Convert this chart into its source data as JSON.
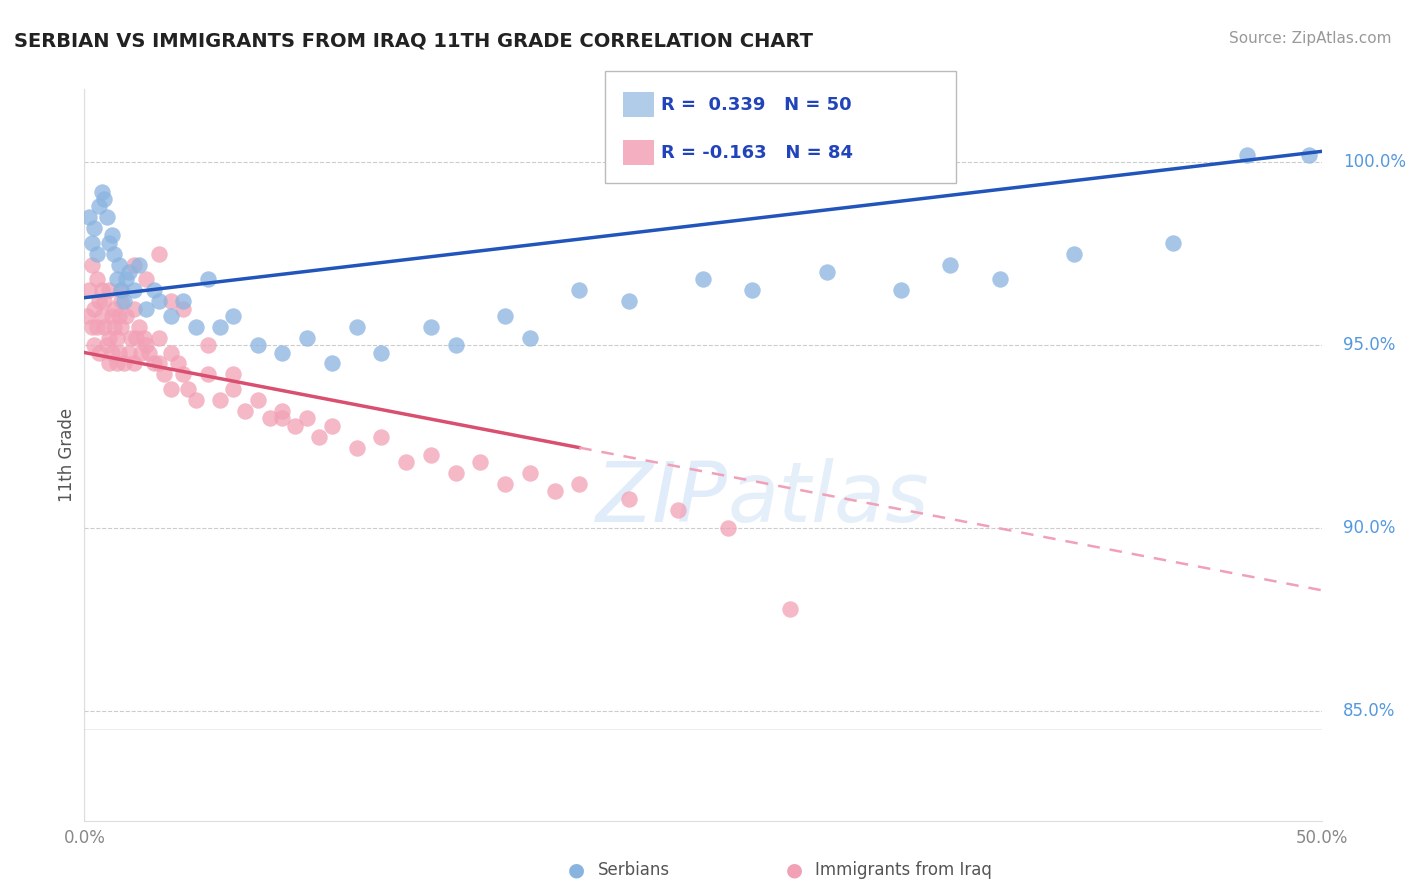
{
  "title": "SERBIAN VS IMMIGRANTS FROM IRAQ 11TH GRADE CORRELATION CHART",
  "source": "Source: ZipAtlas.com",
  "ylabel": "11th Grade",
  "xlim": [
    0.0,
    50.0
  ],
  "ylim": [
    82.0,
    102.0
  ],
  "yticks_right": [
    85.0,
    90.0,
    95.0,
    100.0
  ],
  "ytick_labels_right": [
    "85.0%",
    "90.0%",
    "95.0%",
    "100.0%"
  ],
  "r_serbian": 0.339,
  "n_serbian": 50,
  "r_iraq": -0.163,
  "n_iraq": 84,
  "serbian_color": "#8ab4e0",
  "iraq_color": "#f2a0b5",
  "trendline_serbian_color": "#2255bb",
  "trendline_iraq_solid_color": "#d94f70",
  "trendline_iraq_dashed_color": "#f0a0b8",
  "watermark": "ZIPatlas",
  "legend_box_color_serbian": "#b0cce8",
  "legend_box_color_iraq": "#f4b0c0",
  "serbian_trend_x0": 0.0,
  "serbian_trend_y0": 96.3,
  "serbian_trend_x1": 50.0,
  "serbian_trend_y1": 100.3,
  "iraq_trend_x0": 0.0,
  "iraq_trend_y0": 94.8,
  "iraq_trend_x1": 50.0,
  "iraq_trend_y1": 88.3,
  "iraq_solid_end_x": 20.0,
  "serbian_points_x": [
    0.2,
    0.3,
    0.4,
    0.5,
    0.6,
    0.7,
    0.8,
    0.9,
    1.0,
    1.1,
    1.2,
    1.3,
    1.4,
    1.5,
    1.6,
    1.7,
    1.8,
    2.0,
    2.2,
    2.5,
    2.8,
    3.0,
    3.5,
    4.0,
    4.5,
    5.0,
    5.5,
    6.0,
    7.0,
    8.0,
    9.0,
    10.0,
    11.0,
    12.0,
    14.0,
    15.0,
    17.0,
    18.0,
    20.0,
    22.0,
    25.0,
    27.0,
    30.0,
    33.0,
    35.0,
    37.0,
    40.0,
    44.0,
    47.0,
    49.5
  ],
  "serbian_points_y": [
    98.5,
    97.8,
    98.2,
    97.5,
    98.8,
    99.2,
    99.0,
    98.5,
    97.8,
    98.0,
    97.5,
    96.8,
    97.2,
    96.5,
    96.2,
    96.8,
    97.0,
    96.5,
    97.2,
    96.0,
    96.5,
    96.2,
    95.8,
    96.2,
    95.5,
    96.8,
    95.5,
    95.8,
    95.0,
    94.8,
    95.2,
    94.5,
    95.5,
    94.8,
    95.5,
    95.0,
    95.8,
    95.2,
    96.5,
    96.2,
    96.8,
    96.5,
    97.0,
    96.5,
    97.2,
    96.8,
    97.5,
    97.8,
    100.2,
    100.2
  ],
  "iraq_points_x": [
    0.1,
    0.2,
    0.3,
    0.3,
    0.4,
    0.4,
    0.5,
    0.5,
    0.6,
    0.6,
    0.7,
    0.7,
    0.8,
    0.8,
    0.9,
    1.0,
    1.0,
    1.0,
    1.1,
    1.1,
    1.2,
    1.2,
    1.3,
    1.3,
    1.4,
    1.4,
    1.5,
    1.5,
    1.6,
    1.7,
    1.8,
    1.9,
    2.0,
    2.0,
    2.1,
    2.2,
    2.3,
    2.4,
    2.5,
    2.6,
    2.8,
    3.0,
    3.0,
    3.2,
    3.5,
    3.5,
    3.8,
    4.0,
    4.2,
    4.5,
    5.0,
    5.5,
    6.0,
    6.5,
    7.0,
    7.5,
    8.0,
    8.5,
    9.0,
    9.5,
    10.0,
    11.0,
    12.0,
    13.0,
    14.0,
    15.0,
    16.0,
    17.0,
    18.0,
    19.0,
    20.0,
    22.0,
    24.0,
    26.0,
    1.5,
    2.0,
    2.5,
    3.0,
    3.5,
    4.0,
    5.0,
    6.0,
    8.0,
    28.5
  ],
  "iraq_points_y": [
    95.8,
    96.5,
    95.5,
    97.2,
    96.0,
    95.0,
    96.8,
    95.5,
    96.2,
    94.8,
    95.8,
    96.5,
    95.5,
    96.2,
    95.0,
    96.5,
    95.2,
    94.5,
    95.8,
    94.8,
    95.5,
    96.0,
    95.2,
    94.5,
    95.8,
    94.8,
    95.5,
    96.2,
    94.5,
    95.8,
    94.8,
    95.2,
    96.0,
    94.5,
    95.2,
    95.5,
    94.8,
    95.2,
    95.0,
    94.8,
    94.5,
    95.2,
    94.5,
    94.2,
    94.8,
    93.8,
    94.5,
    94.2,
    93.8,
    93.5,
    94.2,
    93.5,
    93.8,
    93.2,
    93.5,
    93.0,
    93.2,
    92.8,
    93.0,
    92.5,
    92.8,
    92.2,
    92.5,
    91.8,
    92.0,
    91.5,
    91.8,
    91.2,
    91.5,
    91.0,
    91.2,
    90.8,
    90.5,
    90.0,
    96.5,
    97.2,
    96.8,
    97.5,
    96.2,
    96.0,
    95.0,
    94.2,
    93.0,
    87.8
  ]
}
